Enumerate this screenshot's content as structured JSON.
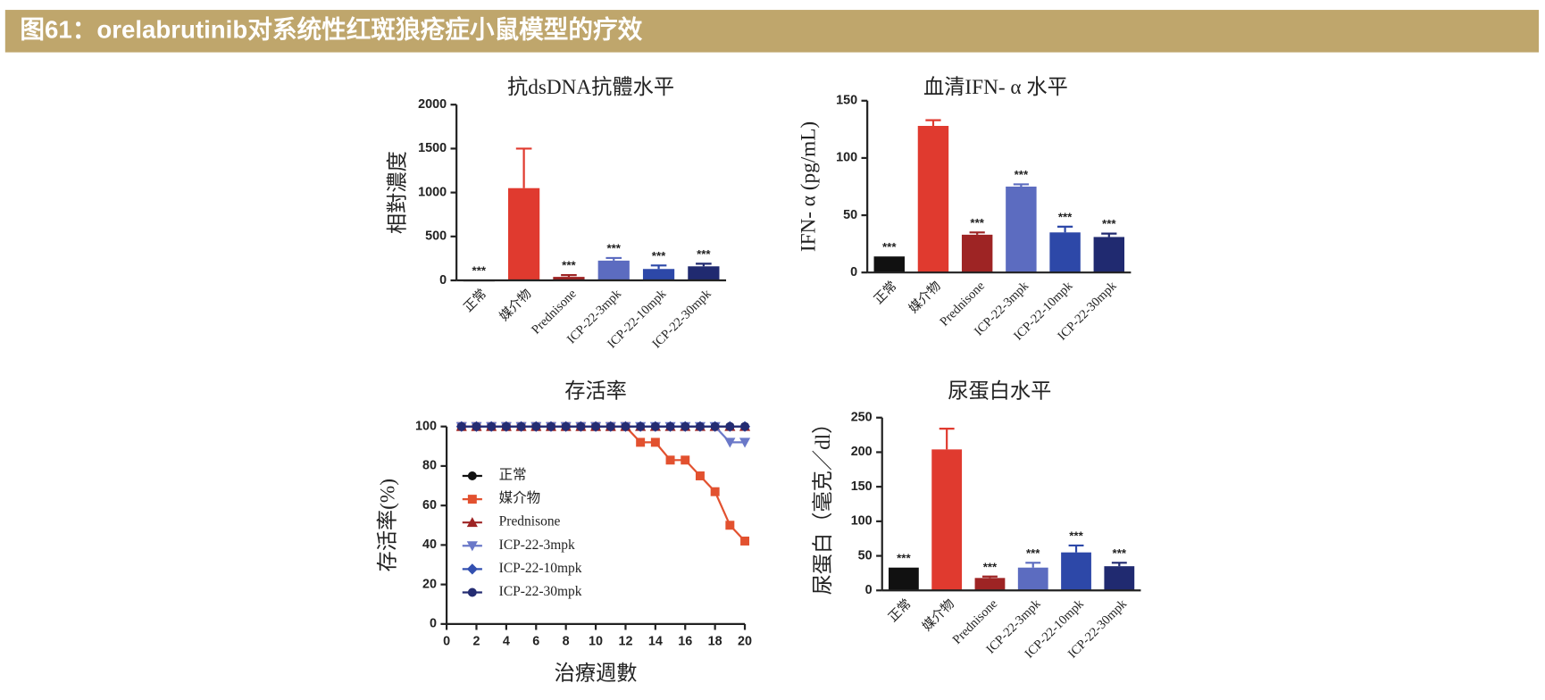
{
  "header": {
    "title": "图61：orelabrutinib对系统性红斑狼疮症小鼠模型的疗效"
  },
  "chart_data": [
    {
      "type": "bar",
      "title": "抗dsDNA抗體水平",
      "y_label": "相對濃度",
      "categories": [
        "正常",
        "媒介物",
        "Prednisone",
        "ICP-22-3mpk",
        "ICP-22-10mpk",
        "ICP-22-30mpk"
      ],
      "values": [
        0,
        1050,
        40,
        225,
        130,
        160
      ],
      "errors": [
        0,
        450,
        20,
        30,
        40,
        30
      ],
      "colors": [
        "#111111",
        "#e03a2f",
        "#9e2424",
        "#5c6cc0",
        "#2d48a8",
        "#202a70"
      ],
      "value_annotations": [
        "***",
        null,
        "***",
        "***",
        "***",
        "***"
      ],
      "ylim": [
        0,
        2000
      ],
      "yticks": [
        0,
        500,
        1000,
        1500,
        2000
      ]
    },
    {
      "type": "bar",
      "title": "血清IFN- α 水平",
      "y_label": "IFN- α (pg/mL)",
      "categories": [
        "正常",
        "媒介物",
        "Prednisone",
        "ICP-22-3mpk",
        "ICP-22-10mpk",
        "ICP-22-30mpk"
      ],
      "values": [
        14,
        128,
        33,
        75,
        35,
        31
      ],
      "errors": [
        0,
        5,
        2,
        2,
        5,
        3
      ],
      "colors": [
        "#111111",
        "#e03a2f",
        "#9e2424",
        "#5c6cc0",
        "#2d48a8",
        "#202a70"
      ],
      "value_annotations": [
        "***",
        null,
        "***",
        "***",
        "***",
        "***"
      ],
      "ylim": [
        0,
        150
      ],
      "yticks": [
        0,
        50,
        100,
        150
      ]
    },
    {
      "type": "line",
      "title": "存活率",
      "x_label": "治療週數",
      "y_label": "存活率(%)",
      "x": [
        1,
        2,
        3,
        4,
        5,
        6,
        7,
        8,
        9,
        10,
        11,
        12,
        13,
        14,
        15,
        16,
        17,
        18,
        19,
        20
      ],
      "series": [
        {
          "name": "正常",
          "color": "#111111",
          "marker": "circle",
          "values": [
            100,
            100,
            100,
            100,
            100,
            100,
            100,
            100,
            100,
            100,
            100,
            100,
            100,
            100,
            100,
            100,
            100,
            100,
            100,
            100
          ]
        },
        {
          "name": "媒介物",
          "color": "#e2512f",
          "marker": "square",
          "values": [
            100,
            100,
            100,
            100,
            100,
            100,
            100,
            100,
            100,
            100,
            100,
            100,
            92,
            92,
            83,
            83,
            75,
            67,
            50,
            42
          ]
        },
        {
          "name": "Prednisone",
          "color": "#9e2424",
          "marker": "triangle",
          "values": [
            100,
            100,
            100,
            100,
            100,
            100,
            100,
            100,
            100,
            100,
            100,
            100,
            100,
            100,
            100,
            100,
            100,
            100,
            100,
            100
          ]
        },
        {
          "name": "ICP-22-3mpk",
          "color": "#6a78c8",
          "marker": "triangle-down",
          "values": [
            100,
            100,
            100,
            100,
            100,
            100,
            100,
            100,
            100,
            100,
            100,
            100,
            100,
            100,
            100,
            100,
            100,
            100,
            92,
            92
          ]
        },
        {
          "name": "ICP-22-10mpk",
          "color": "#3350b0",
          "marker": "diamond",
          "values": [
            100,
            100,
            100,
            100,
            100,
            100,
            100,
            100,
            100,
            100,
            100,
            100,
            100,
            100,
            100,
            100,
            100,
            100,
            100,
            100
          ]
        },
        {
          "name": "ICP-22-30mpk",
          "color": "#242c72",
          "marker": "circle",
          "values": [
            100,
            100,
            100,
            100,
            100,
            100,
            100,
            100,
            100,
            100,
            100,
            100,
            100,
            100,
            100,
            100,
            100,
            100,
            100,
            100
          ]
        }
      ],
      "xlim": [
        0,
        20
      ],
      "xticks": [
        0,
        2,
        4,
        6,
        8,
        10,
        12,
        14,
        16,
        18,
        20
      ],
      "ylim": [
        0,
        100
      ],
      "yticks": [
        0,
        20,
        40,
        60,
        80,
        100
      ],
      "legend": "left"
    },
    {
      "type": "bar",
      "title": "尿蛋白水平",
      "y_label": "尿蛋白（毫克／dl）",
      "categories": [
        "正常",
        "媒介物",
        "Prednisone",
        "ICP-22-3mpk",
        "ICP-22-10mpk",
        "ICP-22-30mpk"
      ],
      "values": [
        33,
        204,
        18,
        33,
        55,
        35
      ],
      "errors": [
        0,
        30,
        2,
        7,
        10,
        5
      ],
      "colors": [
        "#111111",
        "#e03a2f",
        "#9e2424",
        "#5c6cc0",
        "#2d48a8",
        "#202a70"
      ],
      "value_annotations": [
        "***",
        null,
        "***",
        "***",
        "***",
        "***"
      ],
      "ylim": [
        0,
        250
      ],
      "yticks": [
        0,
        50,
        100,
        150,
        200,
        250
      ]
    }
  ]
}
